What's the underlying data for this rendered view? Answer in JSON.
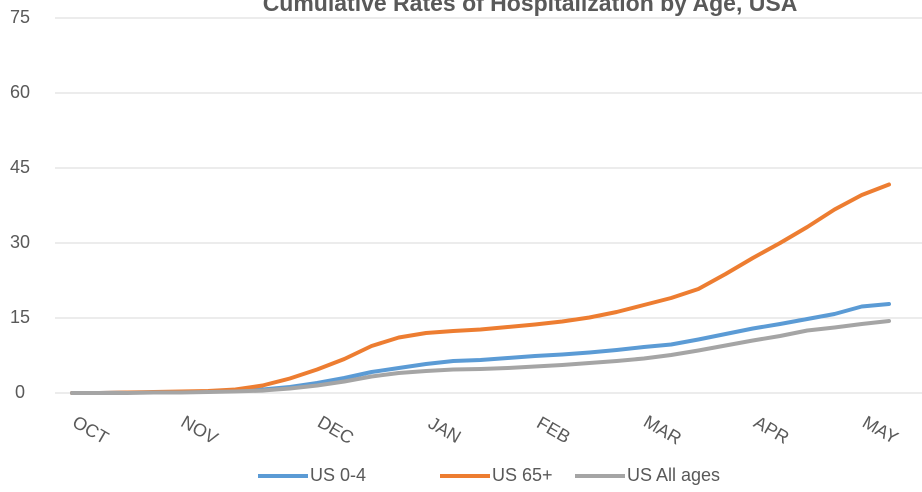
{
  "chart_data": {
    "type": "line",
    "title": "Cumulative Rates of Hospitalization by Age, USA",
    "categories": [
      "OCT",
      null,
      null,
      null,
      "NOV",
      null,
      null,
      null,
      null,
      "DEC",
      null,
      null,
      null,
      "JAN",
      null,
      null,
      null,
      "FEB",
      null,
      null,
      null,
      "MAR",
      null,
      null,
      null,
      "APR",
      null,
      null,
      null,
      "MAY",
      null
    ],
    "series": [
      {
        "name": "US 0-4",
        "color": "#5b9bd5",
        "values": [
          0,
          0,
          0.1,
          0.1,
          0.2,
          0.3,
          0.4,
          0.7,
          1.2,
          2.0,
          3.0,
          4.2,
          5.0,
          5.8,
          6.4,
          6.6,
          7.0,
          7.4,
          7.7,
          8.1,
          8.6,
          9.2,
          9.7,
          10.7,
          11.8,
          12.9,
          13.8,
          14.8,
          15.8,
          17.3,
          17.8
        ]
      },
      {
        "name": "US 65+",
        "color": "#ed7d31",
        "values": [
          0,
          0,
          0.1,
          0.2,
          0.3,
          0.4,
          0.7,
          1.5,
          2.9,
          4.7,
          6.8,
          9.4,
          11.1,
          12.0,
          12.4,
          12.7,
          13.2,
          13.7,
          14.3,
          15.1,
          16.2,
          17.6,
          19.0,
          20.8,
          23.8,
          27.0,
          30.0,
          33.2,
          36.7,
          39.6,
          41.7
        ]
      },
      {
        "name": "US All ages",
        "color": "#a5a5a5",
        "values": [
          0,
          0,
          0,
          0.1,
          0.1,
          0.2,
          0.3,
          0.5,
          0.9,
          1.5,
          2.3,
          3.3,
          4.0,
          4.4,
          4.7,
          4.8,
          5.0,
          5.3,
          5.6,
          6.0,
          6.4,
          6.9,
          7.6,
          8.5,
          9.5,
          10.5,
          11.4,
          12.5,
          13.1,
          13.8,
          14.4
        ]
      }
    ],
    "ylim": [
      0,
      75
    ],
    "yticks": [
      0,
      15,
      30,
      45,
      60,
      75
    ],
    "grid": true
  }
}
